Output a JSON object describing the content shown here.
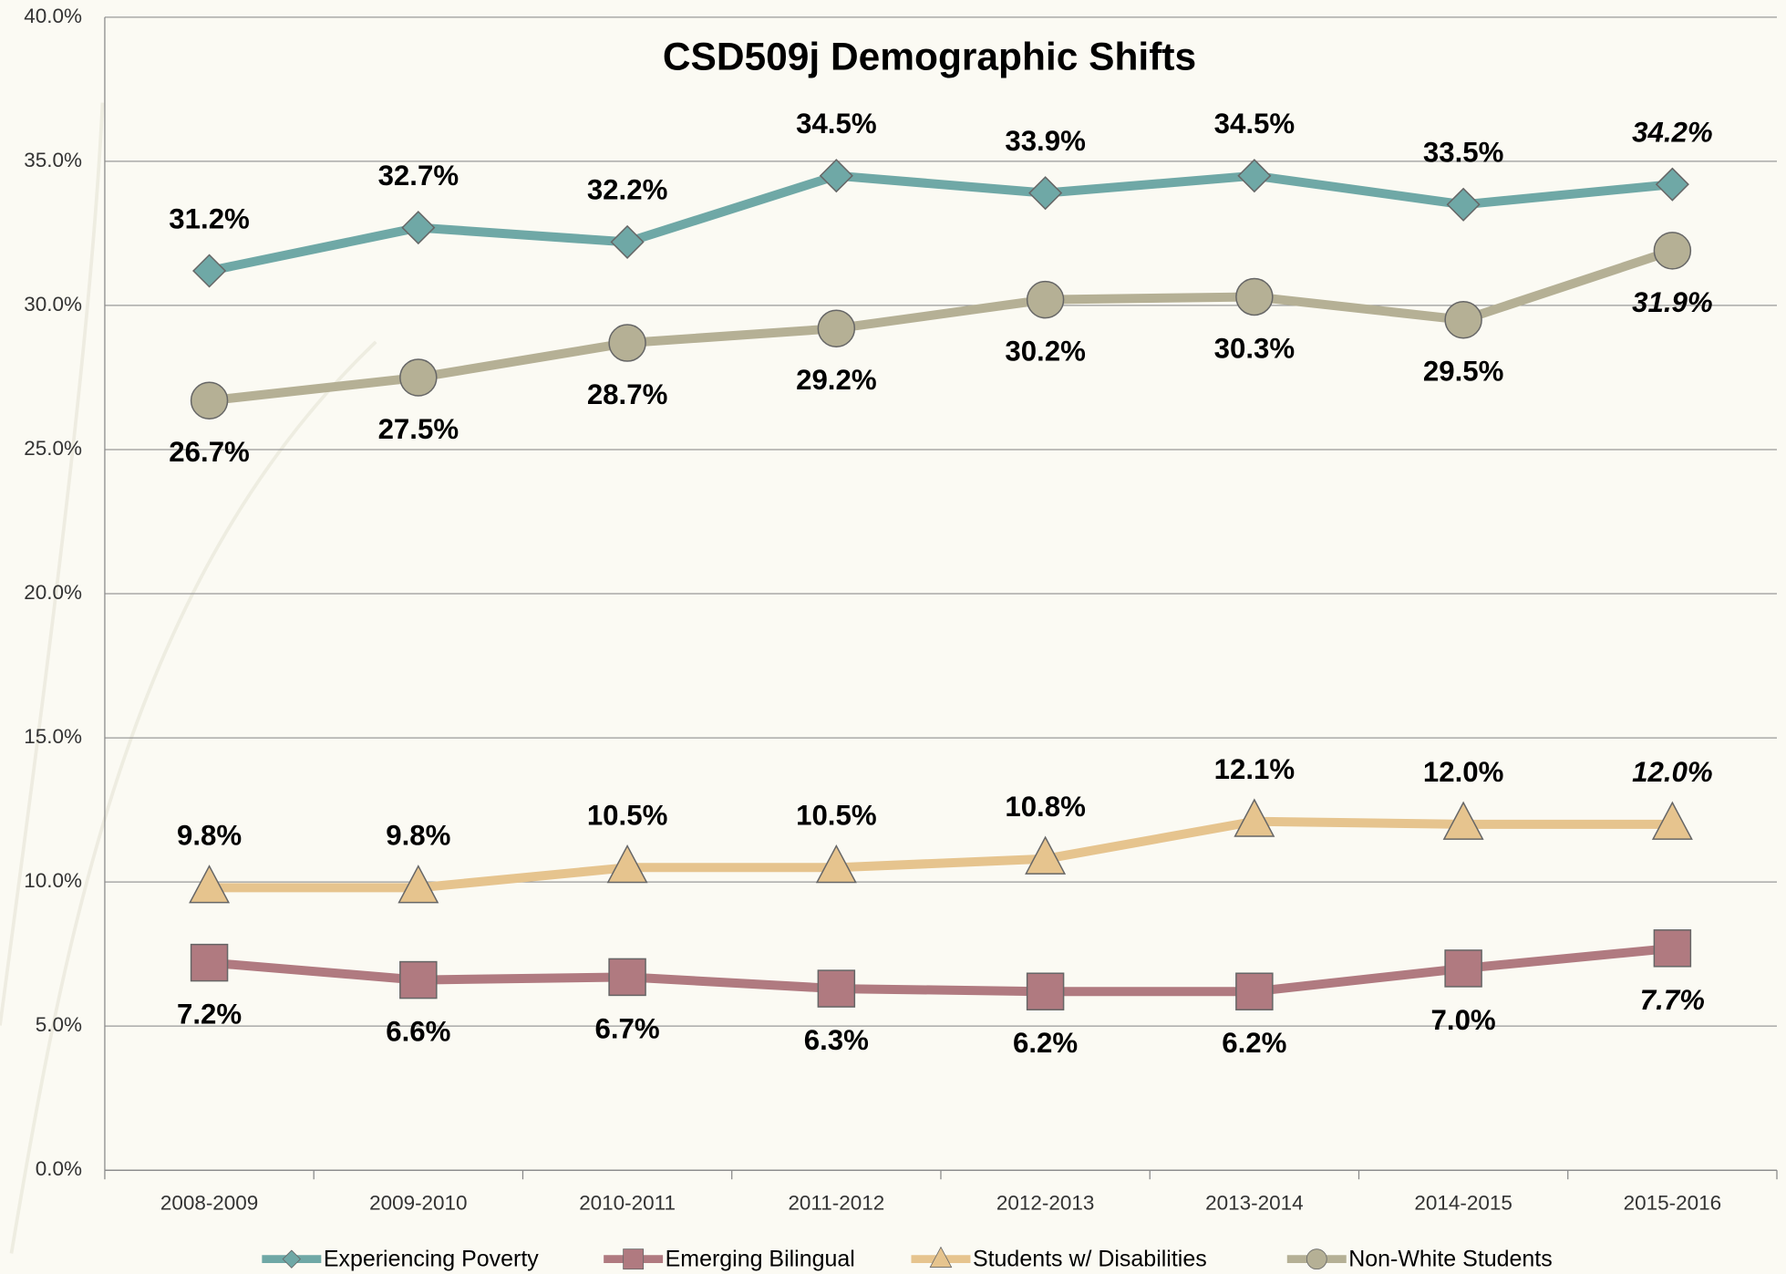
{
  "chart_data": {
    "type": "line",
    "title": "CSD509j Demographic Shifts",
    "categories": [
      "2008-2009",
      "2009-2010",
      "2010-2011",
      "2011-2012",
      "2012-2013",
      "2013-2014",
      "2014-2015",
      "2015-2016"
    ],
    "series": [
      {
        "name": "Experiencing Poverty",
        "color": "#6fa8a6",
        "marker": "diamond",
        "values": [
          31.2,
          32.7,
          32.2,
          34.5,
          33.9,
          34.5,
          33.5,
          34.2
        ],
        "value_labels": [
          "31.2%",
          "32.7%",
          "32.2%",
          "34.5%",
          "33.9%",
          "34.5%",
          "33.5%",
          "34.2%"
        ]
      },
      {
        "name": "Emerging Bilingual",
        "color": "#b07a80",
        "marker": "square",
        "values": [
          7.2,
          6.6,
          6.7,
          6.3,
          6.2,
          6.2,
          7.0,
          7.7
        ],
        "value_labels": [
          "7.2%",
          "6.6%",
          "6.7%",
          "6.3%",
          "6.2%",
          "6.2%",
          "7.0%",
          "7.7%"
        ]
      },
      {
        "name": "Students w/ Disabilities",
        "color": "#e6c48e",
        "marker": "triangle",
        "values": [
          9.8,
          9.8,
          10.5,
          10.5,
          10.8,
          12.1,
          12.0,
          12.0
        ],
        "value_labels": [
          "9.8%",
          "9.8%",
          "10.5%",
          "10.5%",
          "10.8%",
          "12.1%",
          "12.0%",
          "12.0%"
        ]
      },
      {
        "name": "Non-White Students",
        "color": "#b5b095",
        "marker": "circle",
        "values": [
          26.7,
          27.5,
          28.7,
          29.2,
          30.2,
          30.3,
          29.5,
          31.9
        ],
        "value_labels": [
          "26.7%",
          "27.5%",
          "28.7%",
          "29.2%",
          "30.2%",
          "30.3%",
          "29.5%",
          "31.9%"
        ]
      }
    ],
    "ylim": [
      0,
      40
    ],
    "yticks": [
      {
        "value": 0,
        "label": "0.0%"
      },
      {
        "value": 5,
        "label": "5.0%"
      },
      {
        "value": 10,
        "label": "10.0%"
      },
      {
        "value": 15,
        "label": "15.0%"
      },
      {
        "value": 20,
        "label": "20.0%"
      },
      {
        "value": 25,
        "label": "25.0%"
      },
      {
        "value": 30,
        "label": "30.0%"
      },
      {
        "value": 35,
        "label": "35.0%"
      },
      {
        "value": 40,
        "label": "40.0%"
      }
    ],
    "grid": true,
    "legend": "bottom"
  }
}
